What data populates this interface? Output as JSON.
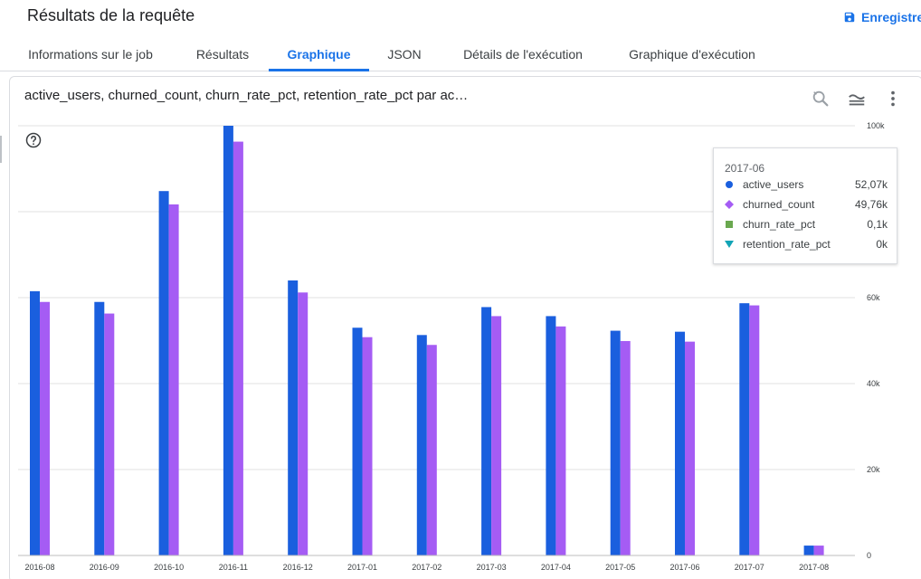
{
  "header": {
    "title": "Résultats de la requête",
    "save_label": "Enregistrer"
  },
  "tabs": [
    {
      "label": "Informations sur le job"
    },
    {
      "label": "Résultats"
    },
    {
      "label": "Graphique"
    },
    {
      "label": "JSON"
    },
    {
      "label": "Détails de l'exécution"
    },
    {
      "label": "Graphique d'exécution"
    }
  ],
  "active_tab": "Graphique",
  "card": {
    "title": "active_users, churned_count, churn_rate_pct, retention_rate_pct par ac…",
    "tools": [
      "zoom-icon",
      "chart-options-icon",
      "more-vert-icon"
    ],
    "help_icon": "help-icon"
  },
  "colors": {
    "active_users": "#1a5fde",
    "churned_count": "#a55cf4",
    "churn_rate_pct": "#6aa84f",
    "retention_rate_pct": "#12a4b6",
    "accent": "#1a73e8"
  },
  "chart_data": {
    "type": "bar",
    "categories": [
      "2016-08",
      "2016-09",
      "2016-10",
      "2016-11",
      "2016-12",
      "2017-01",
      "2017-02",
      "2017-03",
      "2017-04",
      "2017-05",
      "2017-06",
      "2017-07",
      "2017-08"
    ],
    "series": [
      {
        "name": "active_users",
        "values": [
          61500,
          59000,
          84800,
          100000,
          64000,
          53000,
          51300,
          57800,
          55700,
          52300,
          52070,
          58700,
          2300
        ]
      },
      {
        "name": "churned_count",
        "values": [
          59000,
          56300,
          81700,
          96300,
          61200,
          50800,
          49000,
          55700,
          53300,
          49900,
          49760,
          58200,
          2300
        ]
      },
      {
        "name": "churn_rate_pct",
        "values": [
          100,
          100,
          100,
          100,
          100,
          100,
          100,
          100,
          100,
          100,
          100,
          100,
          100
        ]
      },
      {
        "name": "retention_rate_pct",
        "values": [
          0,
          0,
          0,
          0,
          0,
          0,
          0,
          0,
          0,
          0,
          0,
          0,
          0
        ]
      }
    ],
    "y_ticks": [
      "0",
      "20k",
      "40k",
      "60k",
      "100k"
    ],
    "y_tick_values": [
      0,
      20000,
      40000,
      60000,
      100000
    ],
    "ylim": [
      0,
      100000
    ],
    "grid": true
  },
  "tooltip": {
    "title": "2017-06",
    "rows": [
      {
        "name": "active_users",
        "value": "52,07k",
        "marker": "circle"
      },
      {
        "name": "churned_count",
        "value": "49,76k",
        "marker": "diamond"
      },
      {
        "name": "churn_rate_pct",
        "value": "0,1k",
        "marker": "square"
      },
      {
        "name": "retention_rate_pct",
        "value": "0k",
        "marker": "triangle-down"
      }
    ]
  }
}
